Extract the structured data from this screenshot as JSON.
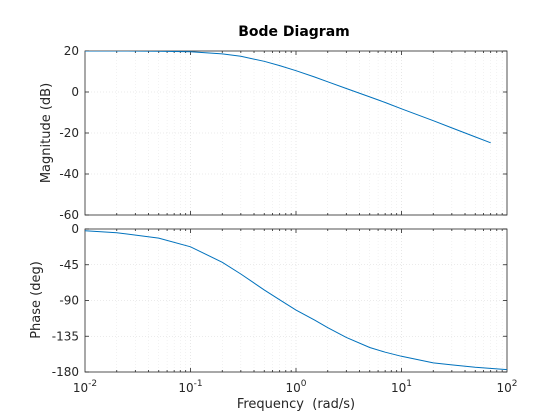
{
  "chart_data": {
    "type": "line",
    "title": "Bode Diagram",
    "xlabel": "Frequency  (rad/s)",
    "x_scale": "log",
    "xlim": [
      0.01,
      100
    ],
    "x_ticks": [
      {
        "base": "10",
        "exp": "-2"
      },
      {
        "base": "10",
        "exp": "-1"
      },
      {
        "base": "10",
        "exp": "0"
      },
      {
        "base": "10",
        "exp": "1"
      },
      {
        "base": "10",
        "exp": "2"
      }
    ],
    "grid": true,
    "panels": [
      {
        "name": "magnitude",
        "ylabel": "Magnitude (dB)",
        "ylim": [
          -60,
          20
        ],
        "y_ticks": [
          "20",
          "0",
          "-20",
          "-40",
          "-60"
        ],
        "series": [
          {
            "color": "#0072bd",
            "x": [
              0.01,
              0.02,
              0.05,
              0.1,
              0.2,
              0.3,
              0.5,
              0.7,
              1,
              1.5,
              2,
              3,
              5,
              7,
              10,
              20,
              30,
              50,
              70
            ],
            "y": [
              20,
              20,
              19.9,
              19.6,
              18.6,
              17.4,
              15,
              12.9,
              10.4,
              7.3,
              5,
              1.7,
              -2.4,
              -5.1,
              -8.2,
              -14.0,
              -17.5,
              -21.9,
              -24.8
            ]
          }
        ]
      },
      {
        "name": "phase",
        "ylabel": "Phase (deg)",
        "ylim": [
          -180,
          0
        ],
        "y_ticks": [
          "0",
          "-45",
          "-90",
          "-135",
          "-180"
        ],
        "series": [
          {
            "color": "#0072bd",
            "x": [
              0.01,
              0.02,
              0.05,
              0.1,
              0.2,
              0.3,
              0.5,
              0.7,
              1,
              1.5,
              2,
              3,
              5,
              7,
              10,
              20,
              30,
              50,
              100
            ],
            "y": [
              -2.3,
              -4.6,
              -11.4,
              -22.4,
              -41.9,
              -56.7,
              -76.6,
              -89.1,
              -102.1,
              -114.7,
              -124.2,
              -136.5,
              -149.1,
              -155.1,
              -160.2,
              -168.6,
              -171.0,
              -174.0,
              -177.0
            ]
          }
        ]
      }
    ]
  }
}
